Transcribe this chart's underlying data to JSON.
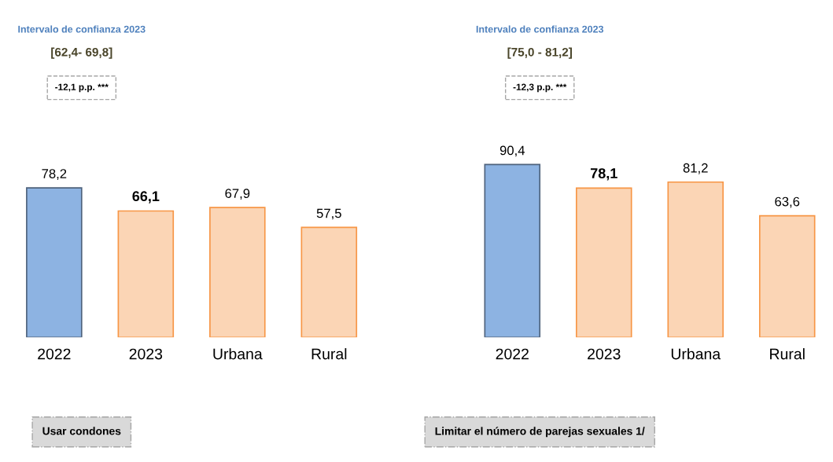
{
  "chart_data": [
    {
      "type": "bar",
      "title": "Usar condones",
      "categories": [
        "2022",
        "2023",
        "Urbana",
        "Rural"
      ],
      "values": [
        78.2,
        66.1,
        67.9,
        57.5
      ],
      "value_labels": [
        "78,2",
        "66,1",
        "67,9",
        "57,5"
      ],
      "colors": [
        "#8db3e2",
        "#fbd5b5",
        "#fbd5b5",
        "#fbd5b5"
      ],
      "annotations": [
        "Intervalo de confianza 2023",
        "[62,4- 69,8]",
        "-12,1 p.p. ***"
      ]
    },
    {
      "type": "bar",
      "title": "Limitar el número de parejas sexuales 1/",
      "categories": [
        "2022",
        "2023",
        "Urbana",
        "Rural"
      ],
      "values": [
        90.4,
        78.1,
        81.2,
        63.6
      ],
      "value_labels": [
        "90,4",
        "78,1",
        "81,2",
        "63,6"
      ],
      "colors": [
        "#8db3e2",
        "#fbd5b5",
        "#fbd5b5",
        "#fbd5b5"
      ],
      "annotations": [
        "Intervalo de confianza 2023",
        "[75,0 - 81,2]",
        "-12,3 p.p. ***"
      ]
    }
  ]
}
